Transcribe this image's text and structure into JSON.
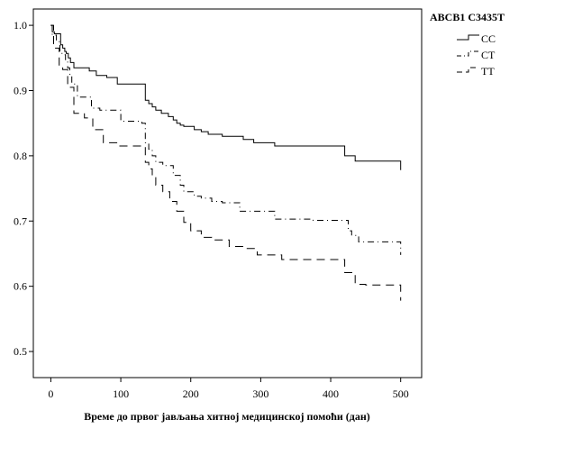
{
  "chart_data": {
    "type": "line",
    "title": "",
    "xlabel": "Време до првог јављања хитној медицинској помоћи (дан)",
    "ylabel": "",
    "xlim": [
      -25,
      530
    ],
    "ylim": [
      0.46,
      1.025
    ],
    "x_ticks": [
      0,
      100,
      200,
      300,
      400,
      500
    ],
    "y_ticks": [
      0.5,
      0.6,
      0.7,
      0.8,
      0.9,
      1.0
    ],
    "y_tick_labels": [
      "0.5",
      "0.6",
      "0.7",
      "0.8",
      "0.9",
      "1.0"
    ],
    "grid": false,
    "legend": {
      "title": "ABCB1 C3435T",
      "placement": "top-right outside"
    },
    "series": [
      {
        "name": "CC",
        "dash": "solid",
        "x": [
          0,
          2,
          5,
          14,
          17,
          20,
          22,
          25,
          28,
          33,
          45,
          55,
          65,
          80,
          95,
          135,
          140,
          145,
          150,
          158,
          168,
          175,
          180,
          185,
          190,
          205,
          215,
          225,
          235,
          245,
          275,
          290,
          320,
          420,
          425,
          435,
          500
        ],
        "y": [
          1.0,
          0.99,
          0.987,
          0.97,
          0.965,
          0.96,
          0.957,
          0.95,
          0.943,
          0.935,
          0.935,
          0.93,
          0.923,
          0.92,
          0.91,
          0.885,
          0.88,
          0.875,
          0.87,
          0.865,
          0.86,
          0.855,
          0.85,
          0.847,
          0.845,
          0.84,
          0.837,
          0.833,
          0.833,
          0.83,
          0.825,
          0.82,
          0.815,
          0.8,
          0.8,
          0.792,
          0.778
        ]
      },
      {
        "name": "CT",
        "dash": "dash-dot",
        "x": [
          0,
          2,
          8,
          13,
          16,
          21,
          24,
          27,
          30,
          38,
          58,
          70,
          80,
          100,
          130,
          135,
          140,
          145,
          150,
          160,
          175,
          185,
          190,
          205,
          215,
          230,
          245,
          270,
          320,
          375,
          425,
          430,
          440,
          500
        ],
        "y": [
          1.0,
          0.985,
          0.975,
          0.96,
          0.955,
          0.945,
          0.935,
          0.925,
          0.91,
          0.89,
          0.873,
          0.87,
          0.87,
          0.853,
          0.85,
          0.82,
          0.81,
          0.8,
          0.79,
          0.785,
          0.77,
          0.755,
          0.745,
          0.738,
          0.735,
          0.73,
          0.728,
          0.715,
          0.703,
          0.701,
          0.685,
          0.678,
          0.668,
          0.648
        ]
      },
      {
        "name": "TT",
        "dash": "dashed",
        "x": [
          0,
          4,
          12,
          17,
          24,
          33,
          48,
          60,
          75,
          95,
          115,
          135,
          140,
          145,
          150,
          160,
          170,
          180,
          190,
          200,
          215,
          230,
          255,
          275,
          295,
          330,
          355,
          420,
          435,
          450,
          500
        ],
        "y": [
          1.0,
          0.965,
          0.935,
          0.932,
          0.905,
          0.865,
          0.858,
          0.84,
          0.82,
          0.815,
          0.815,
          0.79,
          0.78,
          0.768,
          0.755,
          0.745,
          0.73,
          0.715,
          0.698,
          0.685,
          0.675,
          0.671,
          0.661,
          0.658,
          0.648,
          0.641,
          0.641,
          0.621,
          0.603,
          0.602,
          0.578
        ]
      }
    ]
  }
}
